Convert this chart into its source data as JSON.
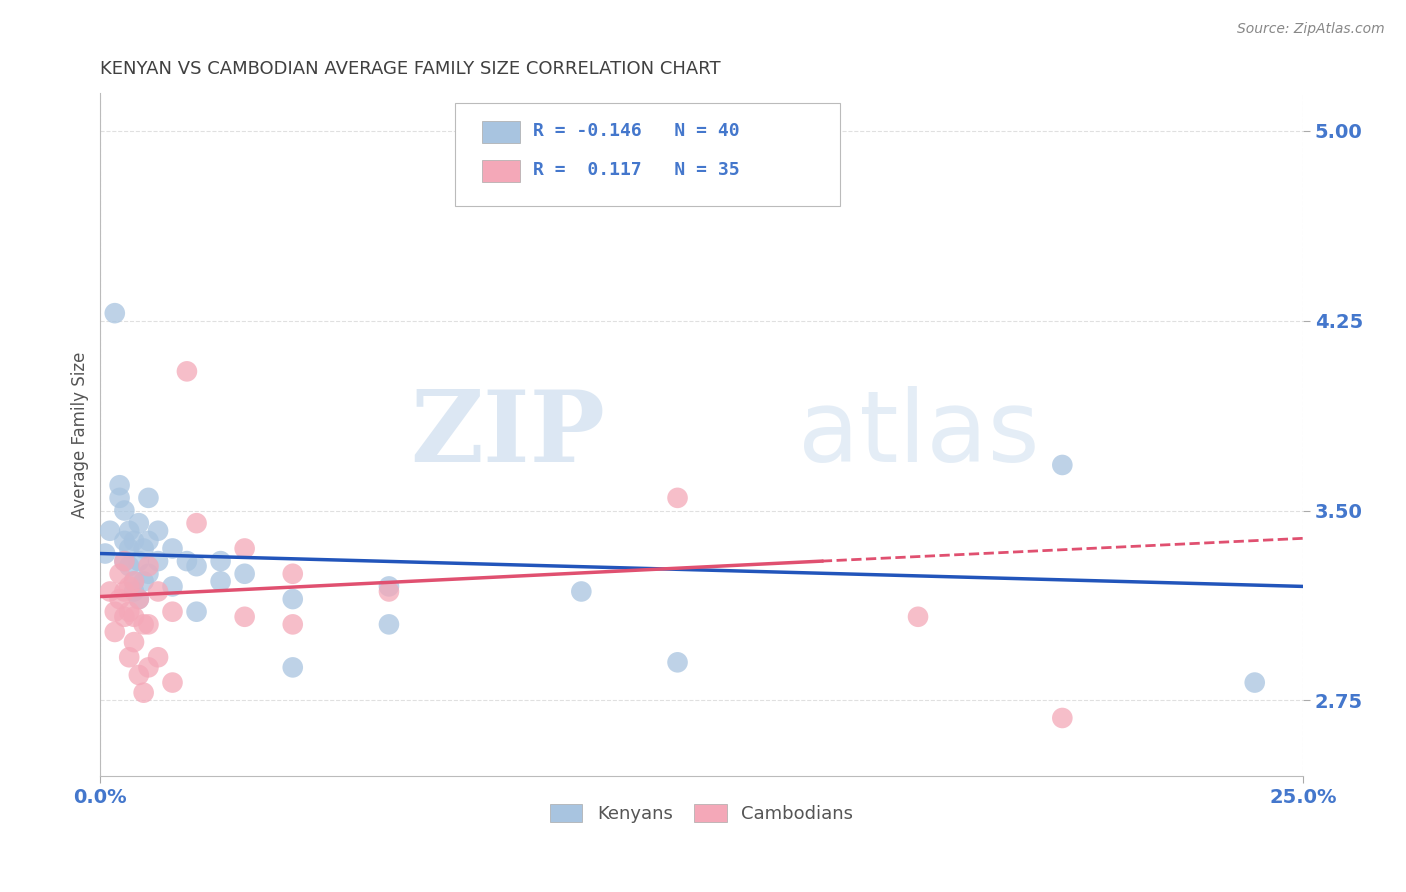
{
  "title": "KENYAN VS CAMBODIAN AVERAGE FAMILY SIZE CORRELATION CHART",
  "source": "Source: ZipAtlas.com",
  "ylabel": "Average Family Size",
  "xlabel_ticks": [
    "0.0%",
    "25.0%"
  ],
  "yticks": [
    2.75,
    3.5,
    4.25,
    5.0
  ],
  "xlim": [
    0.0,
    0.25
  ],
  "ylim": [
    2.45,
    5.15
  ],
  "kenyan_R": -0.146,
  "kenyan_N": 40,
  "cambodian_R": 0.117,
  "cambodian_N": 35,
  "kenyan_color": "#a8c4e0",
  "cambodian_color": "#f4a8b8",
  "kenyan_line_color": "#2255bb",
  "cambodian_line_color": "#e05070",
  "kenyan_points": [
    [
      0.001,
      3.33
    ],
    [
      0.002,
      3.42
    ],
    [
      0.003,
      4.28
    ],
    [
      0.004,
      3.6
    ],
    [
      0.004,
      3.55
    ],
    [
      0.005,
      3.5
    ],
    [
      0.005,
      3.38
    ],
    [
      0.005,
      3.3
    ],
    [
      0.006,
      3.42
    ],
    [
      0.006,
      3.35
    ],
    [
      0.006,
      3.28
    ],
    [
      0.007,
      3.38
    ],
    [
      0.007,
      3.22
    ],
    [
      0.007,
      3.18
    ],
    [
      0.008,
      3.45
    ],
    [
      0.008,
      3.3
    ],
    [
      0.008,
      3.15
    ],
    [
      0.009,
      3.35
    ],
    [
      0.009,
      3.22
    ],
    [
      0.01,
      3.55
    ],
    [
      0.01,
      3.38
    ],
    [
      0.01,
      3.25
    ],
    [
      0.012,
      3.42
    ],
    [
      0.012,
      3.3
    ],
    [
      0.015,
      3.35
    ],
    [
      0.015,
      3.2
    ],
    [
      0.018,
      3.3
    ],
    [
      0.02,
      3.28
    ],
    [
      0.02,
      3.1
    ],
    [
      0.025,
      3.3
    ],
    [
      0.025,
      3.22
    ],
    [
      0.03,
      3.25
    ],
    [
      0.04,
      3.15
    ],
    [
      0.04,
      2.88
    ],
    [
      0.06,
      3.2
    ],
    [
      0.06,
      3.05
    ],
    [
      0.1,
      3.18
    ],
    [
      0.12,
      2.9
    ],
    [
      0.2,
      3.68
    ],
    [
      0.24,
      2.82
    ]
  ],
  "cambodian_points": [
    [
      0.002,
      3.18
    ],
    [
      0.003,
      3.1
    ],
    [
      0.003,
      3.02
    ],
    [
      0.004,
      3.25
    ],
    [
      0.004,
      3.15
    ],
    [
      0.005,
      3.3
    ],
    [
      0.005,
      3.18
    ],
    [
      0.005,
      3.08
    ],
    [
      0.006,
      3.2
    ],
    [
      0.006,
      3.1
    ],
    [
      0.006,
      2.92
    ],
    [
      0.007,
      3.22
    ],
    [
      0.007,
      3.08
    ],
    [
      0.007,
      2.98
    ],
    [
      0.008,
      3.15
    ],
    [
      0.008,
      2.85
    ],
    [
      0.009,
      3.05
    ],
    [
      0.009,
      2.78
    ],
    [
      0.01,
      3.28
    ],
    [
      0.01,
      3.05
    ],
    [
      0.01,
      2.88
    ],
    [
      0.012,
      3.18
    ],
    [
      0.012,
      2.92
    ],
    [
      0.015,
      3.1
    ],
    [
      0.015,
      2.82
    ],
    [
      0.018,
      4.05
    ],
    [
      0.02,
      3.45
    ],
    [
      0.03,
      3.35
    ],
    [
      0.03,
      3.08
    ],
    [
      0.04,
      3.25
    ],
    [
      0.04,
      3.05
    ],
    [
      0.06,
      3.18
    ],
    [
      0.12,
      3.55
    ],
    [
      0.17,
      3.08
    ],
    [
      0.2,
      2.68
    ]
  ],
  "kenyan_trendline": [
    [
      0.0,
      3.33
    ],
    [
      0.25,
      3.2
    ]
  ],
  "cambodian_trendline_solid": [
    [
      0.0,
      3.16
    ],
    [
      0.15,
      3.3
    ]
  ],
  "cambodian_trendline_dashed": [
    [
      0.15,
      3.3
    ],
    [
      0.25,
      3.39
    ]
  ],
  "watermark_zip": "ZIP",
  "watermark_atlas": "atlas",
  "background_color": "#ffffff",
  "grid_color": "#cccccc",
  "title_color": "#404040",
  "axis_label_color": "#555555",
  "tick_color": "#4477cc"
}
